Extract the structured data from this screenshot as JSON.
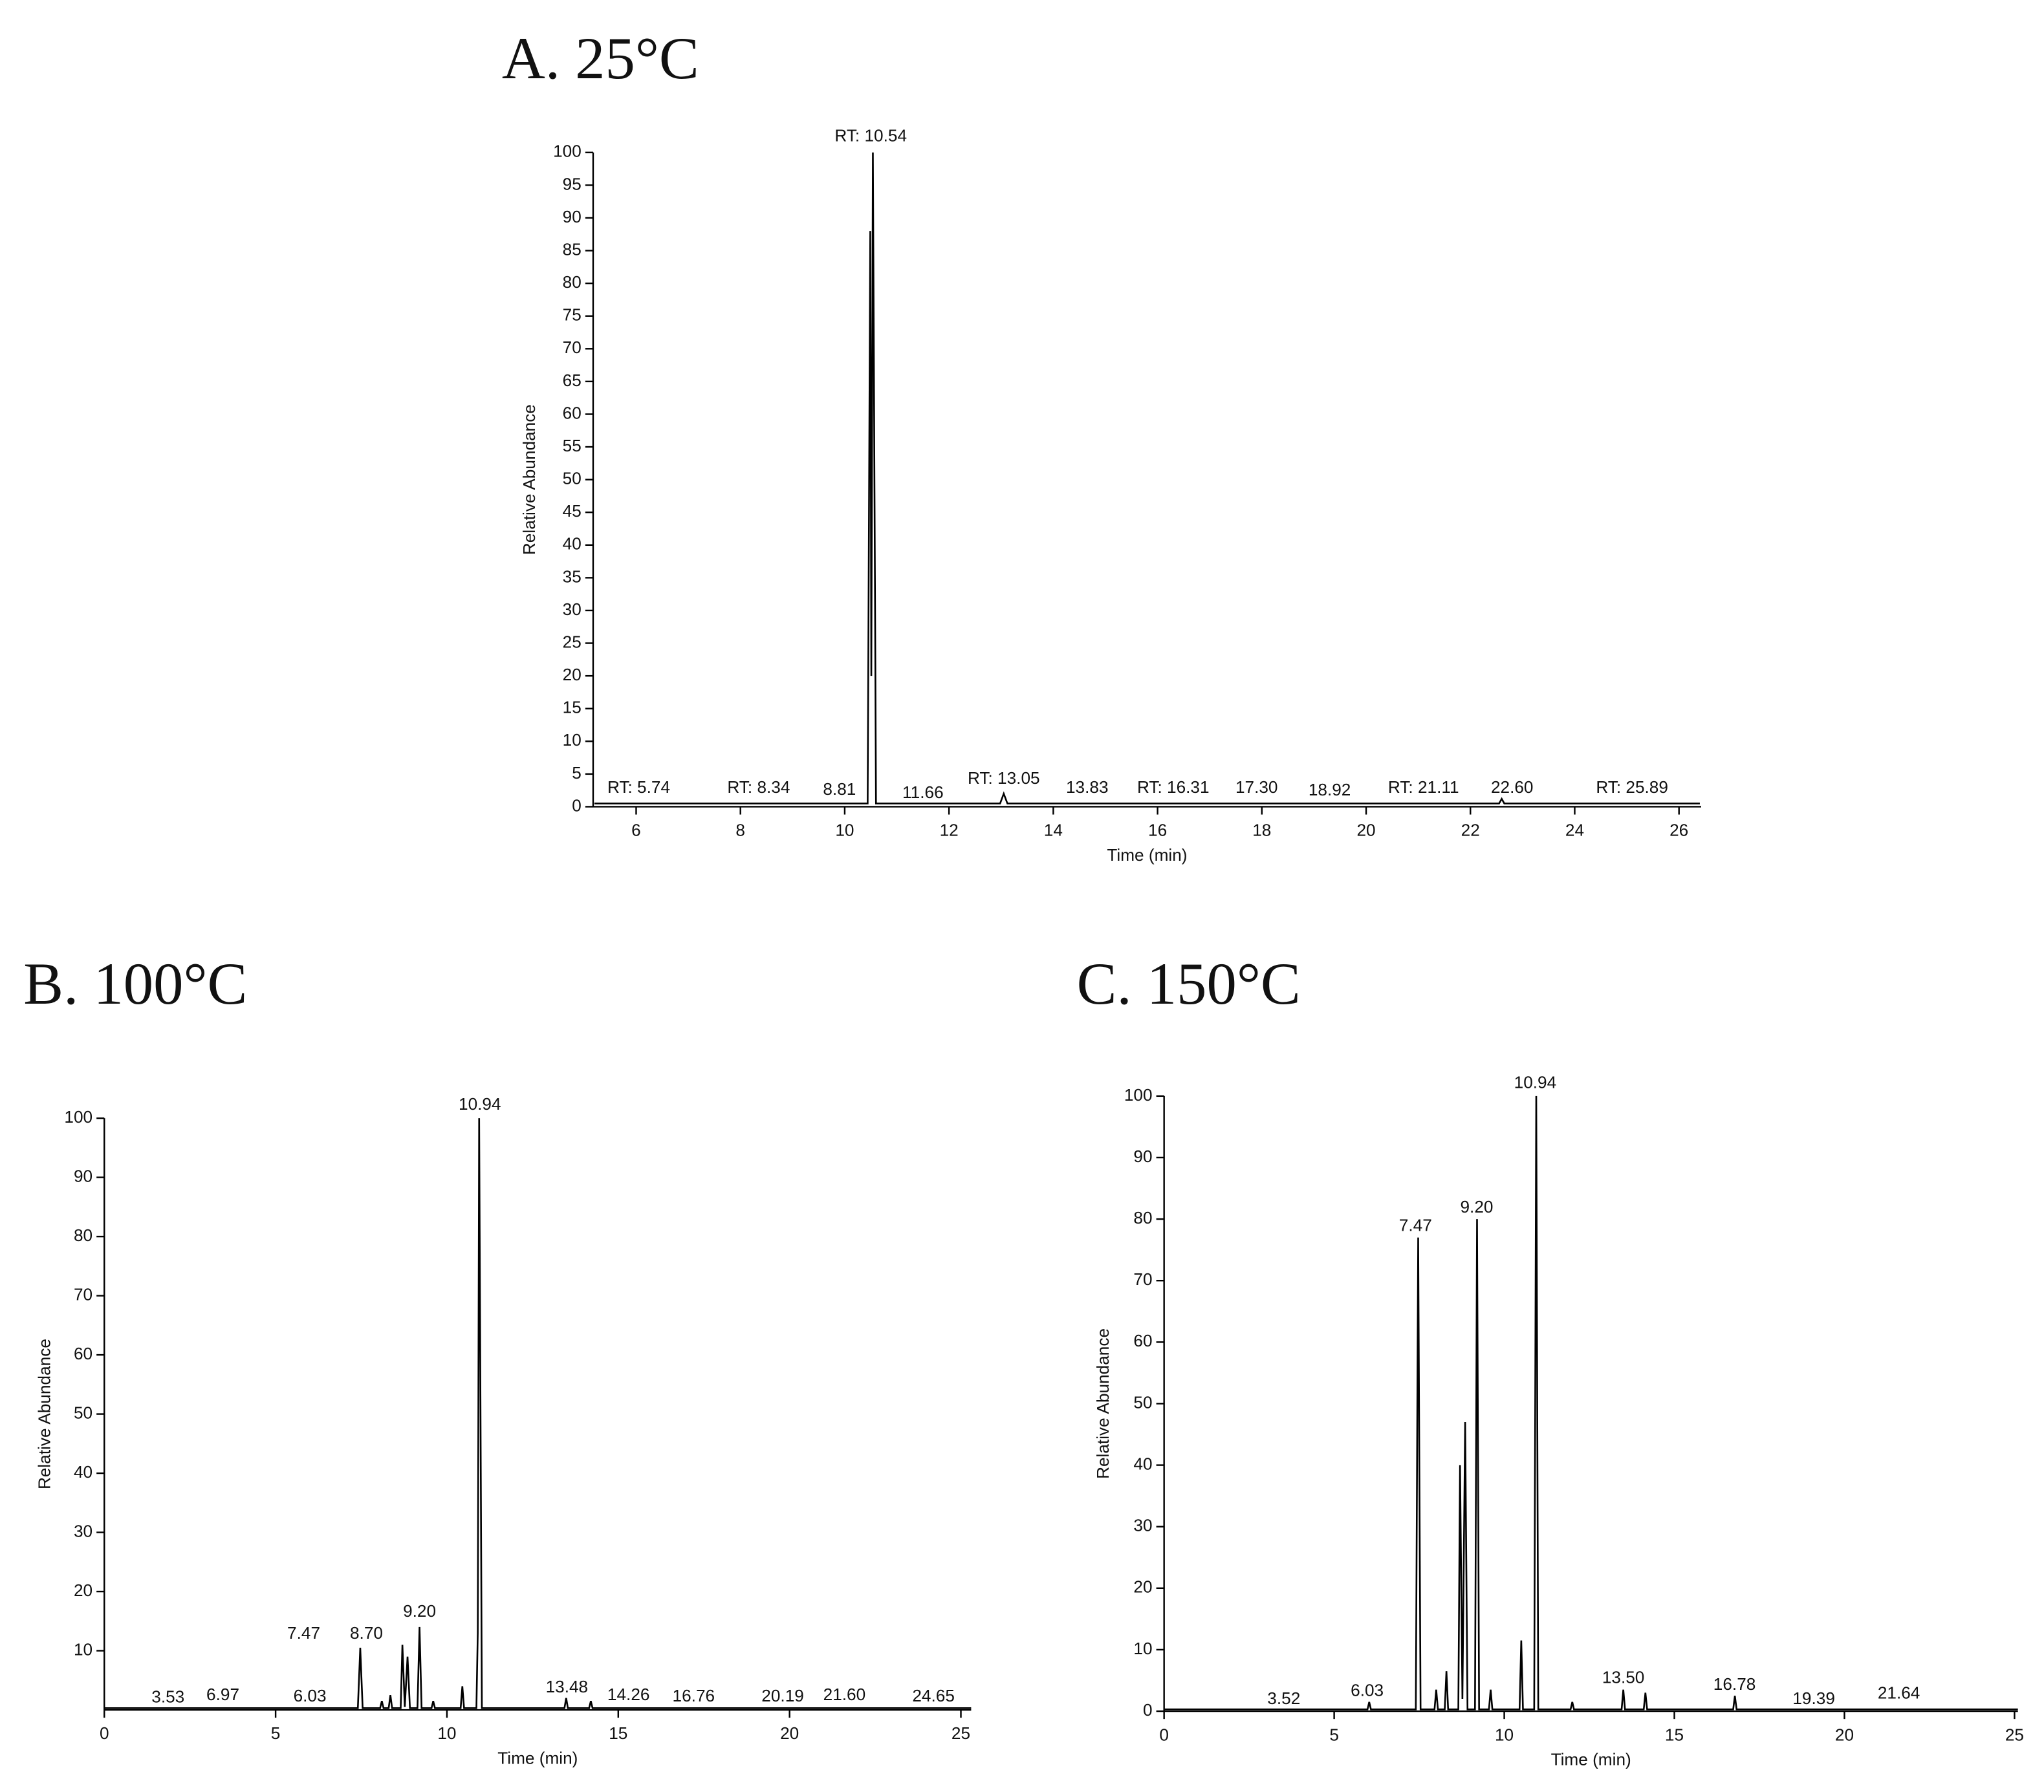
{
  "chart_data": [
    {
      "type": "line",
      "title": "A. 25°C",
      "x_label": "Time (min)",
      "y_label": "Relative Abundance",
      "xlim": [
        5.175,
        26.425
      ],
      "xticks": [
        6,
        8,
        10,
        12,
        14,
        16,
        18,
        20,
        22,
        24,
        26
      ],
      "ylim": [
        0,
        100
      ],
      "yticks": [
        0,
        5,
        10,
        15,
        20,
        25,
        30,
        35,
        40,
        45,
        50,
        55,
        60,
        65,
        70,
        75,
        80,
        85,
        90,
        95,
        100
      ],
      "series": [
        {
          "color": "#000000",
          "x": [
            5.2,
            10.44,
            10.49,
            10.51,
            10.54,
            10.6,
            12.98,
            13.05,
            13.12,
            22.55,
            22.6,
            22.65,
            26.4
          ],
          "values": [
            0.5,
            0.5,
            88,
            20,
            100,
            0.5,
            0.5,
            2,
            0.5,
            0.5,
            1.2,
            0.5,
            0.5
          ]
        }
      ],
      "annotations": [
        {
          "text": "RT: 10.54",
          "x": 10.5,
          "y": 102.4
        },
        {
          "text": "RT: 5.74",
          "x": 6.05,
          "y": 2.8
        },
        {
          "text": "RT: 8.34",
          "x": 8.35,
          "y": 2.8
        },
        {
          "text": "8.81",
          "x": 9.9,
          "y": 2.5
        },
        {
          "text": "11.66",
          "x": 11.5,
          "y": 2
        },
        {
          "text": "RT: 13.05",
          "x": 13.05,
          "y": 4.2
        },
        {
          "text": "13.83",
          "x": 14.65,
          "y": 2.8
        },
        {
          "text": "RT: 16.31",
          "x": 16.3,
          "y": 2.8
        },
        {
          "text": "17.30",
          "x": 17.9,
          "y": 2.8
        },
        {
          "text": "18.92",
          "x": 19.3,
          "y": 2.4
        },
        {
          "text": "RT: 21.11",
          "x": 21.1,
          "y": 2.8
        },
        {
          "text": "22.60",
          "x": 22.8,
          "y": 2.8
        },
        {
          "text": "RT: 25.89",
          "x": 25.1,
          "y": 2.8
        }
      ]
    },
    {
      "type": "line",
      "title": "B. 100°C",
      "x_label": "Time (min)",
      "y_label": "Relative Abundance",
      "xlim": [
        0,
        25.3
      ],
      "xticks": [
        0,
        5,
        10,
        15,
        20,
        25
      ],
      "ylim": [
        0,
        100
      ],
      "yticks": [
        10,
        20,
        30,
        40,
        50,
        60,
        70,
        80,
        90,
        100
      ],
      "series": [
        {
          "color": "#000000",
          "x": [
            0,
            7.4,
            7.47,
            7.54,
            8.05,
            8.1,
            8.15,
            8.3,
            8.35,
            8.4,
            8.65,
            8.7,
            8.77,
            8.85,
            8.92,
            9.14,
            9.2,
            9.26,
            9.55,
            9.6,
            9.65,
            10.4,
            10.45,
            10.5,
            10.86,
            10.9,
            10.94,
            11.02,
            13.43,
            13.48,
            13.53,
            14.15,
            14.2,
            14.25,
            25.3
          ],
          "values": [
            0.3,
            0.3,
            10.5,
            0.3,
            0.3,
            1.5,
            0.3,
            0.3,
            2.5,
            0.3,
            0.3,
            11,
            0.5,
            9,
            0.3,
            0.3,
            14,
            0.3,
            0.3,
            1.5,
            0.3,
            0.3,
            4,
            0.3,
            0.3,
            13,
            100,
            0.3,
            0.3,
            2,
            0.3,
            0.3,
            1.5,
            0.3,
            0.3
          ]
        }
      ],
      "annotations": [
        {
          "text": "10.94",
          "x": 10.96,
          "y": 102.2
        },
        {
          "text": "9.20",
          "x": 9.2,
          "y": 16.5
        },
        {
          "text": "7.47",
          "x": 5.82,
          "y": 12.8
        },
        {
          "text": "8.70",
          "x": 7.65,
          "y": 12.8
        },
        {
          "text": "3.53",
          "x": 1.86,
          "y": 2
        },
        {
          "text": "6.97",
          "x": 3.46,
          "y": 2.4
        },
        {
          "text": "6.03",
          "x": 6.0,
          "y": 2.2
        },
        {
          "text": "13.48",
          "x": 13.5,
          "y": 3.7
        },
        {
          "text": "14.26",
          "x": 15.3,
          "y": 2.4
        },
        {
          "text": "16.76",
          "x": 17.2,
          "y": 2.2
        },
        {
          "text": "20.19",
          "x": 19.8,
          "y": 2.2
        },
        {
          "text": "21.60",
          "x": 21.6,
          "y": 2.4
        },
        {
          "text": "24.65",
          "x": 24.2,
          "y": 2.2
        }
      ]
    },
    {
      "type": "line",
      "title": "C. 150°C",
      "x_label": "Time (min)",
      "y_label": "Relative Abundance",
      "xlim": [
        0,
        25.1
      ],
      "xticks": [
        0,
        5,
        10,
        15,
        20,
        25
      ],
      "ylim": [
        0,
        100
      ],
      "yticks": [
        0,
        10,
        20,
        30,
        40,
        50,
        60,
        70,
        80,
        90,
        100
      ],
      "series": [
        {
          "color": "#000000",
          "x": [
            0,
            5.98,
            6.03,
            6.08,
            7.4,
            7.47,
            7.54,
            7.95,
            8.0,
            8.05,
            8.25,
            8.3,
            8.35,
            8.65,
            8.7,
            8.77,
            8.85,
            8.92,
            9.14,
            9.2,
            9.26,
            9.55,
            9.6,
            9.65,
            10.45,
            10.5,
            10.55,
            10.88,
            10.94,
            11.0,
            11.95,
            12.0,
            12.05,
            13.45,
            13.5,
            13.55,
            14.1,
            14.15,
            14.2,
            16.73,
            16.78,
            16.83,
            25.1
          ],
          "values": [
            0.3,
            0.3,
            1.5,
            0.3,
            0.3,
            77,
            0.3,
            0.3,
            3.5,
            0.3,
            0.3,
            6.5,
            0.3,
            0.3,
            40,
            2,
            47,
            0.3,
            0.3,
            80,
            0.3,
            0.3,
            3.5,
            0.3,
            0.3,
            11.5,
            0.3,
            0.3,
            100,
            0.3,
            0.3,
            1.5,
            0.3,
            0.3,
            3.5,
            0.3,
            0.3,
            3,
            0.3,
            0.3,
            2.5,
            0.3,
            0.3
          ]
        }
      ],
      "annotations": [
        {
          "text": "10.94",
          "x": 10.91,
          "y": 102
        },
        {
          "text": "7.47",
          "x": 7.39,
          "y": 78.8
        },
        {
          "text": "9.20",
          "x": 9.19,
          "y": 81.8
        },
        {
          "text": "3.52",
          "x": 3.52,
          "y": 1.9
        },
        {
          "text": "6.03",
          "x": 5.97,
          "y": 3.2
        },
        {
          "text": "13.50",
          "x": 13.5,
          "y": 5.3
        },
        {
          "text": "16.78",
          "x": 16.77,
          "y": 4.2
        },
        {
          "text": "19.39",
          "x": 19.1,
          "y": 1.9
        },
        {
          "text": "21.64",
          "x": 21.6,
          "y": 2.8
        }
      ]
    }
  ]
}
